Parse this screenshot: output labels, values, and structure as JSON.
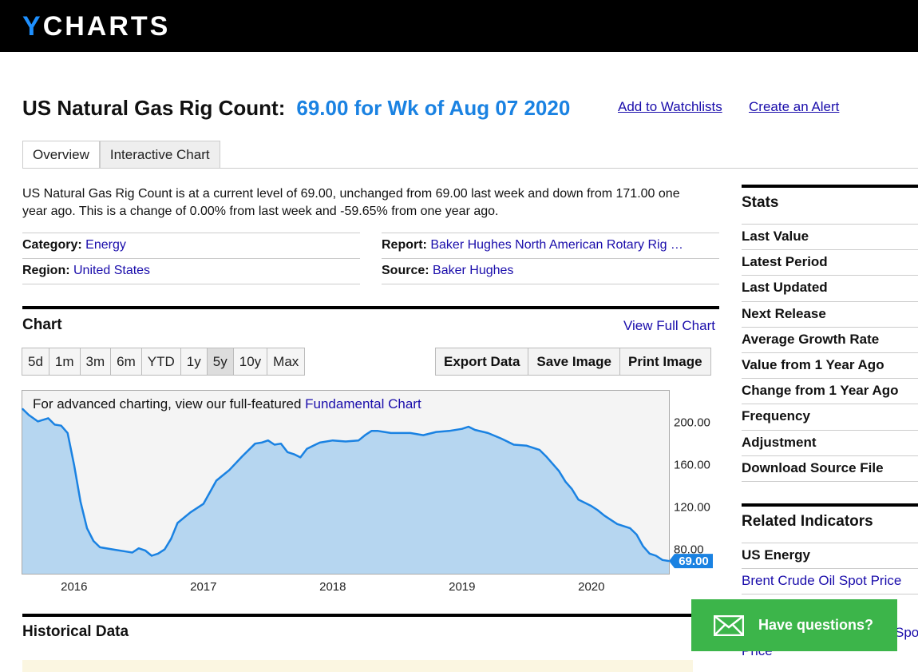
{
  "brand": {
    "logo_first": "Y",
    "logo_rest": "CHARTS"
  },
  "header": {
    "title": "US Natural Gas Rig Count:",
    "value": "69.00 for Wk of Aug 07 2020",
    "add_watchlist": "Add to Watchlists",
    "create_alert": "Create an Alert"
  },
  "tabs": [
    "Overview",
    "Interactive Chart"
  ],
  "description": "US Natural Gas Rig Count is at a current level of 69.00, unchanged from 69.00 last week and down from 171.00 one year ago. This is a change of 0.00% from last week and -59.65% from one year ago.",
  "meta": {
    "category_label": "Category:",
    "category": "Energy",
    "region_label": "Region:",
    "region": "United States",
    "report_label": "Report:",
    "report": "Baker Hughes North American Rotary Rig …",
    "source_label": "Source:",
    "source": "Baker Hughes"
  },
  "chart_section": {
    "title": "Chart",
    "view_full": "View Full Chart",
    "ranges": [
      "5d",
      "1m",
      "3m",
      "6m",
      "YTD",
      "1y",
      "5y",
      "10y",
      "Max"
    ],
    "selected_range": "5y",
    "exports": [
      "Export Data",
      "Save Image",
      "Print Image"
    ],
    "note_prefix": "For advanced charting, view our full-featured",
    "note_link": "Fundamental Chart"
  },
  "chart_data": {
    "type": "area",
    "x": [
      2015.6,
      2015.65,
      2015.72,
      2015.8,
      2015.85,
      2015.9,
      2015.95,
      2016.0,
      2016.05,
      2016.1,
      2016.15,
      2016.2,
      2016.3,
      2016.4,
      2016.45,
      2016.5,
      2016.55,
      2016.6,
      2016.65,
      2016.7,
      2016.75,
      2016.8,
      2016.9,
      2017.0,
      2017.05,
      2017.1,
      2017.15,
      2017.2,
      2017.3,
      2017.4,
      2017.45,
      2017.5,
      2017.55,
      2017.6,
      2017.65,
      2017.7,
      2017.75,
      2017.8,
      2017.85,
      2017.9,
      2018.0,
      2018.1,
      2018.2,
      2018.25,
      2018.3,
      2018.35,
      2018.4,
      2018.45,
      2018.5,
      2018.6,
      2018.7,
      2018.8,
      2018.9,
      2019.0,
      2019.05,
      2019.1,
      2019.2,
      2019.3,
      2019.4,
      2019.5,
      2019.6,
      2019.65,
      2019.7,
      2019.75,
      2019.8,
      2019.85,
      2019.9,
      2020.0,
      2020.05,
      2020.1,
      2020.2,
      2020.25,
      2020.3,
      2020.35,
      2020.4,
      2020.45,
      2020.5,
      2020.55,
      2020.6
    ],
    "values": [
      213,
      207,
      201,
      204,
      198,
      197,
      190,
      160,
      125,
      100,
      88,
      82,
      80,
      78,
      77,
      81,
      79,
      74,
      76,
      80,
      90,
      105,
      115,
      123,
      134,
      145,
      150,
      155,
      168,
      180,
      181,
      183,
      179,
      180,
      172,
      170,
      167,
      175,
      178,
      181,
      183,
      182,
      183,
      188,
      192,
      192,
      191,
      190,
      190,
      190,
      188,
      191,
      192,
      194,
      196,
      193,
      190,
      185,
      179,
      178,
      174,
      168,
      161,
      154,
      144,
      137,
      127,
      121,
      117,
      112,
      104,
      102,
      100,
      94,
      83,
      76,
      74,
      70,
      69
    ],
    "xlabel": "",
    "ylabel": "",
    "x_ticks": [
      "2016",
      "2017",
      "2018",
      "2019",
      "2020"
    ],
    "y_ticks": [
      "200.00",
      "160.00",
      "120.00",
      "80.00"
    ],
    "ylim": [
      57,
      230
    ],
    "xlim": [
      2015.6,
      2020.6
    ],
    "last_label": "69.00",
    "line_color": "#1a82e2",
    "fill_color": "#b6d6f0",
    "grid": false
  },
  "historical": {
    "title": "Historical Data"
  },
  "stats": {
    "title": "Stats",
    "items": [
      "Last Value",
      "Latest Period",
      "Last Updated",
      "Next Release",
      "Average Growth Rate",
      "Value from 1 Year Ago",
      "Change from 1 Year Ago",
      "Frequency",
      "Adjustment",
      "Download Source File"
    ]
  },
  "related": {
    "title": "Related Indicators",
    "group": "US Energy",
    "link1": "Brent Crude Oil Spot Price",
    "link2_tail": "Spot",
    "link3_tail": "Price"
  },
  "help_widget": {
    "label": "Have questions?",
    "icon": "envelope-icon"
  }
}
